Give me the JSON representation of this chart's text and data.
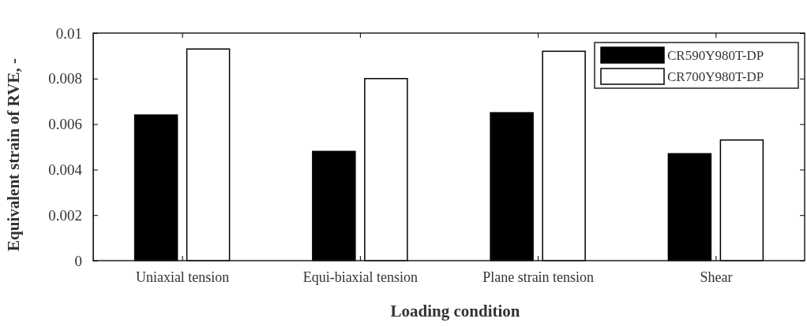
{
  "chart_data": {
    "type": "bar",
    "xlabel": "Loading condition",
    "ylabel": "Equivalent strain of RVE, -",
    "categories": [
      "Uniaxial tension",
      "Equi-biaxial tension",
      "Plane strain tension",
      "Shear"
    ],
    "series": [
      {
        "name": "CR590Y980T-DP",
        "color": "#000000",
        "values": [
          0.0064,
          0.0048,
          0.0065,
          0.0047
        ]
      },
      {
        "name": "CR700Y980T-DP",
        "color": "#ffffff",
        "values": [
          0.0093,
          0.008,
          0.0092,
          0.0053
        ]
      }
    ],
    "ylim": [
      0,
      0.01
    ],
    "yticks": [
      0,
      0.002,
      0.004,
      0.006,
      0.008,
      0.01
    ],
    "legend": "top right"
  }
}
